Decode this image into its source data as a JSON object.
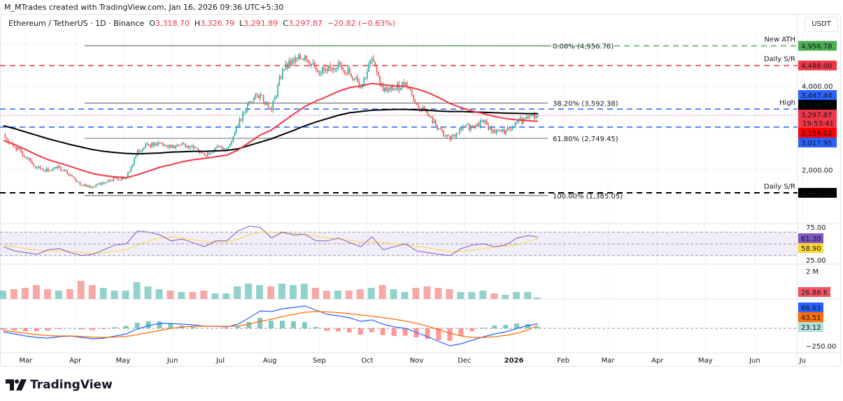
{
  "header": {
    "credit": "M_MTrades created with TradingView.com, Jan 16, 2026 09:36 UTC+5:30",
    "symbol": "Ethereum / TetherUS · 1D · Binance",
    "open_label": "O",
    "open": "3,318.70",
    "high_label": "H",
    "high": "3,326.79",
    "low_label": "L",
    "low": "3,291.89",
    "close_label": "C",
    "close": "3,297.87",
    "change": "−20.82 (−0.63%)",
    "currency": "USDT"
  },
  "brand": {
    "name": "TradingView"
  },
  "colors": {
    "up": "#26a69a",
    "down": "#ef5350",
    "ema": "#f23645",
    "sma": "#000000",
    "fib": "#787b86",
    "ath": "#4caf50",
    "sr_red": "#f23645",
    "level_blue": "#2962ff",
    "rsi": "#7e57c2",
    "rsi_ma": "#fdd835",
    "macd": "#2962ff",
    "signal": "#ff6d00"
  },
  "chart_data": {
    "type": "candlestick",
    "price_axis": {
      "ticks": [
        "4,000.00",
        "2,000.00"
      ],
      "tick_values": [
        4000,
        2000
      ],
      "range": [
        1000,
        5300
      ]
    },
    "x_ticks": [
      "Mar",
      "Apr",
      "May",
      "Jun",
      "Jul",
      "Aug",
      "Sep",
      "Oct",
      "Nov",
      "Dec",
      "2026",
      "Feb",
      "Mar",
      "Apr",
      "May",
      "Jun",
      "Ju"
    ],
    "x_tick_dates": [
      "2025-03-01",
      "2025-04-01",
      "2025-05-01",
      "2025-06-01",
      "2025-07-01",
      "2025-08-01",
      "2025-09-01",
      "2025-10-01",
      "2025-11-01",
      "2025-12-01",
      "2026-01-01",
      "2026-02-01",
      "2026-03-01",
      "2026-04-01",
      "2026-05-01",
      "2026-06-01",
      "2026-07-01"
    ],
    "dates": [
      "2025-02-15",
      "2025-02-22",
      "2025-03-01",
      "2025-03-08",
      "2025-03-15",
      "2025-03-22",
      "2025-03-29",
      "2025-04-05",
      "2025-04-12",
      "2025-04-19",
      "2025-04-26",
      "2025-05-03",
      "2025-05-10",
      "2025-05-17",
      "2025-05-24",
      "2025-05-31",
      "2025-06-07",
      "2025-06-14",
      "2025-06-21",
      "2025-06-28",
      "2025-07-05",
      "2025-07-12",
      "2025-07-19",
      "2025-07-26",
      "2025-08-02",
      "2025-08-09",
      "2025-08-16",
      "2025-08-23",
      "2025-08-30",
      "2025-09-06",
      "2025-09-13",
      "2025-09-20",
      "2025-09-27",
      "2025-10-04",
      "2025-10-11",
      "2025-10-18",
      "2025-10-25",
      "2025-11-01",
      "2025-11-08",
      "2025-11-15",
      "2025-11-22",
      "2025-11-29",
      "2025-12-06",
      "2025-12-13",
      "2025-12-20",
      "2025-12-27",
      "2026-01-03",
      "2026-01-10",
      "2026-01-16"
    ],
    "close": [
      2800,
      2550,
      2300,
      2050,
      1970,
      2050,
      1880,
      1630,
      1580,
      1680,
      1800,
      1800,
      2470,
      2580,
      2630,
      2520,
      2630,
      2520,
      2350,
      2520,
      2520,
      3050,
      3630,
      3800,
      3420,
      4380,
      4580,
      4720,
      4380,
      4350,
      4550,
      4300,
      3970,
      4650,
      3880,
      3920,
      4080,
      3550,
      3300,
      2970,
      2720,
      2970,
      3050,
      3130,
      2880,
      2920,
      3130,
      3250,
      3297.87
    ],
    "ema_red": [
      2700,
      2600,
      2480,
      2350,
      2240,
      2160,
      2080,
      1990,
      1910,
      1860,
      1830,
      1810,
      1880,
      1970,
      2060,
      2120,
      2190,
      2240,
      2270,
      2310,
      2350,
      2470,
      2650,
      2830,
      2950,
      3140,
      3330,
      3510,
      3640,
      3750,
      3870,
      3960,
      4000,
      4060,
      4030,
      4000,
      3990,
      3930,
      3840,
      3720,
      3580,
      3480,
      3400,
      3340,
      3270,
      3220,
      3190,
      3170,
      3154.02
    ],
    "sma_black": [
      3050,
      2980,
      2900,
      2820,
      2740,
      2670,
      2600,
      2540,
      2480,
      2440,
      2410,
      2390,
      2380,
      2390,
      2400,
      2420,
      2430,
      2440,
      2440,
      2450,
      2460,
      2500,
      2580,
      2660,
      2740,
      2840,
      2940,
      3050,
      3140,
      3220,
      3300,
      3360,
      3390,
      3420,
      3430,
      3440,
      3440,
      3430,
      3420,
      3400,
      3390,
      3390,
      3380,
      3370,
      3360,
      3350,
      3345,
      3340,
      3338.77
    ],
    "levels": [
      {
        "label": "New ATH",
        "value": 4956.78,
        "tag": "4,956.78",
        "color": "#4caf50",
        "style": "dashed"
      },
      {
        "label": "Daily S/R",
        "value": 4488.0,
        "tag": "4,488.00",
        "color": "#f23645",
        "style": "dashed"
      },
      {
        "label": "High",
        "value": 3447.44,
        "tag": "3,447.44",
        "color": "#2962ff",
        "style": "dashed"
      },
      {
        "label": "",
        "value": 3017.95,
        "tag": "3,017.95",
        "color": "#2962ff",
        "style": "dashed"
      },
      {
        "label": "Daily S/R",
        "value": 1449.12,
        "tag": "1,449.12",
        "color": "#000000",
        "style": "dashed"
      }
    ],
    "fib_levels": [
      {
        "label": "0.00% (4,956.78)",
        "value": 4956.78
      },
      {
        "label": "38.20% (3,592.38)",
        "value": 3592.38
      },
      {
        "label": "61.80% (2,749.45)",
        "value": 2749.45
      },
      {
        "label": "100.00% (1,385.05)",
        "value": 1385.05
      }
    ],
    "price_tags": [
      {
        "text": "3,338.77",
        "value": 3338.77,
        "bg": "#000000",
        "fg": "#ffffff"
      },
      {
        "text": "3,297.87",
        "value": 3297.87,
        "bg": "#f23645",
        "fg": "#ffffff",
        "sub": "19:53:41"
      },
      {
        "text": "3,154.02",
        "value": 3154.02,
        "bg": "#ff0000",
        "fg": "#ffffff"
      }
    ],
    "rsi": {
      "ticks": [
        "75.00",
        "25.00"
      ],
      "upper": 70,
      "mid": 50,
      "lower": 30,
      "values": [
        45,
        38,
        35,
        32,
        40,
        42,
        35,
        30,
        32,
        40,
        48,
        50,
        72,
        70,
        65,
        55,
        58,
        52,
        45,
        55,
        55,
        72,
        80,
        78,
        60,
        70,
        65,
        66,
        55,
        55,
        60,
        52,
        45,
        62,
        40,
        45,
        50,
        38,
        35,
        32,
        30,
        42,
        48,
        50,
        45,
        48,
        60,
        64,
        61.3
      ],
      "ma": [
        48,
        45,
        42,
        39,
        38,
        38,
        37,
        35,
        34,
        35,
        37,
        40,
        48,
        55,
        60,
        62,
        60,
        57,
        54,
        53,
        53,
        58,
        65,
        70,
        70,
        68,
        67,
        66,
        63,
        60,
        58,
        56,
        53,
        54,
        52,
        50,
        49,
        46,
        43,
        40,
        37,
        37,
        39,
        42,
        45,
        46,
        49,
        54,
        58.9
      ],
      "tag_rsi": "61.30",
      "tag_ma": "58.90"
    },
    "volume": {
      "tick": "2 M",
      "last": "26.86 K",
      "values": [
        0.6,
        0.7,
        0.8,
        1.0,
        0.7,
        0.6,
        0.7,
        1.3,
        1.0,
        0.8,
        0.6,
        0.6,
        1.2,
        0.9,
        0.7,
        0.6,
        0.5,
        0.5,
        0.6,
        0.4,
        0.4,
        0.9,
        1.1,
        1.0,
        0.9,
        1.1,
        1.0,
        1.1,
        0.8,
        0.6,
        0.6,
        0.6,
        0.7,
        0.8,
        1.0,
        0.7,
        0.5,
        0.8,
        0.9,
        0.8,
        0.7,
        0.5,
        0.5,
        0.6,
        0.4,
        0.3,
        0.5,
        0.5,
        0.1
      ]
    },
    "macd": {
      "ticks": [
        "−250.00"
      ],
      "tick_values": [
        -250
      ],
      "values": [
        -50,
        -80,
        -110,
        -130,
        -140,
        -120,
        -110,
        -130,
        -150,
        -140,
        -110,
        -80,
        -10,
        40,
        70,
        70,
        60,
        50,
        30,
        30,
        20,
        60,
        150,
        250,
        240,
        280,
        300,
        320,
        260,
        200,
        180,
        150,
        100,
        120,
        60,
        20,
        0,
        -60,
        -120,
        -190,
        -250,
        -220,
        -170,
        -120,
        -80,
        -50,
        0,
        40,
        66.63
      ],
      "signal": [
        -30,
        -50,
        -70,
        -90,
        -105,
        -110,
        -110,
        -115,
        -125,
        -130,
        -125,
        -115,
        -90,
        -60,
        -30,
        0,
        20,
        30,
        30,
        30,
        28,
        35,
        60,
        100,
        130,
        170,
        200,
        230,
        240,
        235,
        225,
        210,
        190,
        175,
        155,
        130,
        105,
        70,
        30,
        -20,
        -70,
        -110,
        -130,
        -130,
        -120,
        -100,
        -70,
        -20,
        43.51
      ],
      "tag_macd": "66.63",
      "tag_signal": "43.51",
      "tag_hist": "23.12"
    }
  }
}
